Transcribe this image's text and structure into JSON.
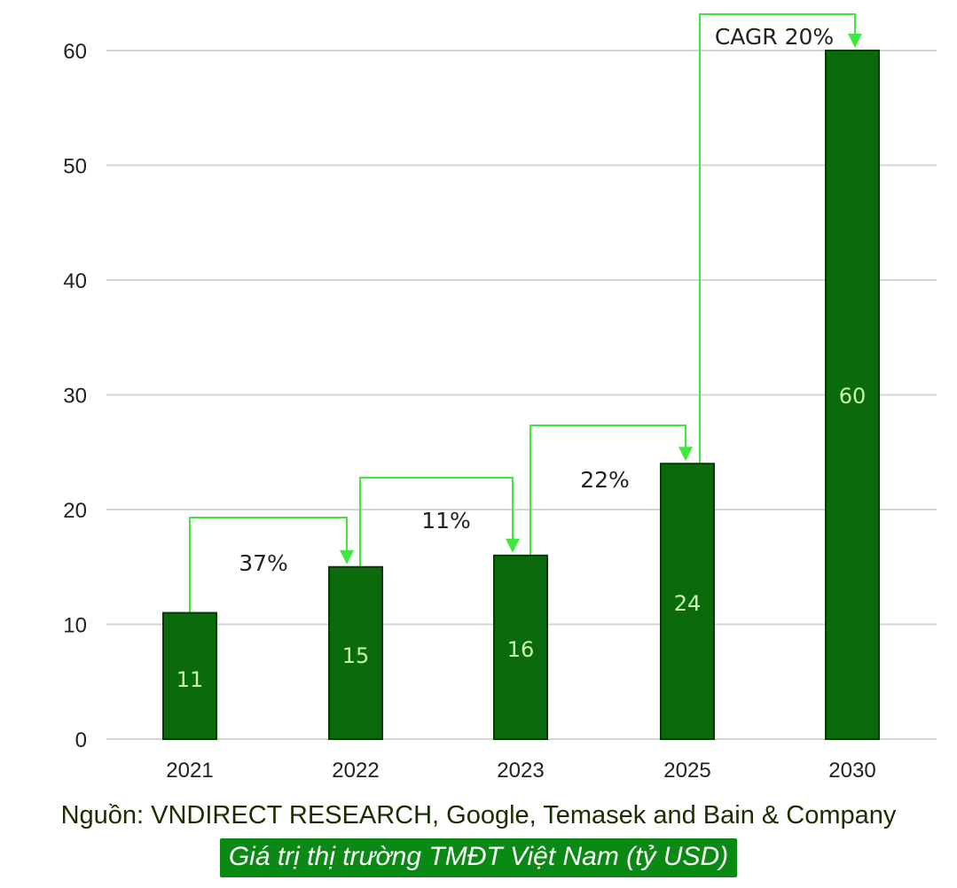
{
  "chart_data": {
    "type": "bar",
    "categories": [
      "2021",
      "2022",
      "2023",
      "2025",
      "2030"
    ],
    "values": [
      11,
      15,
      16,
      24,
      60
    ],
    "data_labels": [
      "11",
      "15",
      "16",
      "24",
      "60"
    ],
    "ylim": [
      0,
      60
    ],
    "yticks": [
      0,
      10,
      20,
      30,
      40,
      50,
      60
    ],
    "ytick_labels": [
      "0",
      "10",
      "20",
      "30",
      "40",
      "50",
      "60"
    ],
    "grid": true,
    "bar_color": "#0b6a0b",
    "arrow_color": "#3ee83e",
    "growth_annotations": [
      {
        "from": "2021",
        "to": "2022",
        "label": "37%"
      },
      {
        "from": "2022",
        "to": "2023",
        "label": "11%"
      },
      {
        "from": "2023",
        "to": "2025",
        "label": "22%"
      },
      {
        "from": "2025",
        "to": "2030",
        "label": "CAGR 20%"
      }
    ],
    "title": "Giá trị thị trường TMĐT Việt Nam (tỷ USD)",
    "source": "Nguồn: VNDIRECT RESEARCH, Google, Temasek and Bain & Company"
  },
  "footer": {
    "source": "Nguồn: VNDIRECT RESEARCH, Google, Temasek and Bain & Company",
    "caption": "Giá trị thị trường TMĐT Việt Nam (tỷ USD)"
  }
}
